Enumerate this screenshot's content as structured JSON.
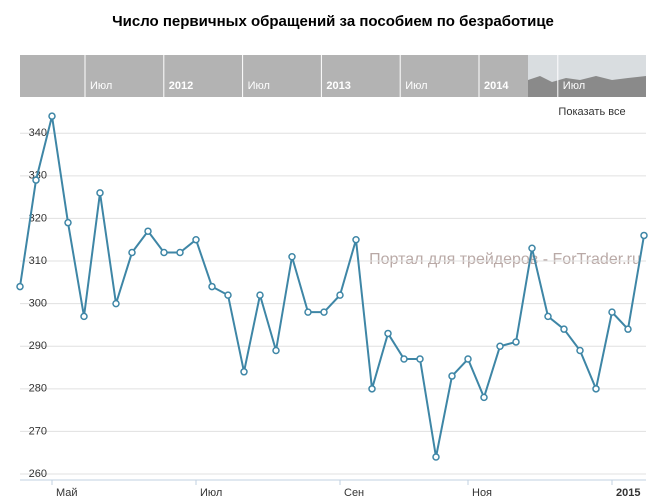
{
  "chart_data": {
    "type": "line",
    "title": "Число первичных обращений за пособием по безработице",
    "categories": [
      null,
      null,
      "Май",
      null,
      null,
      null,
      null,
      null,
      null,
      null,
      null,
      "Июл",
      null,
      null,
      null,
      null,
      null,
      null,
      null,
      null,
      "Сен",
      null,
      null,
      null,
      null,
      null,
      null,
      null,
      "Ноя",
      null,
      null,
      null,
      null,
      null,
      null,
      null,
      null,
      "2015",
      null,
      null
    ],
    "series": [
      {
        "color": "#3e86a6",
        "values": [
          304,
          329,
          344,
          319,
          297,
          326,
          300,
          312,
          317,
          312,
          312,
          315,
          304,
          302,
          284,
          302,
          289,
          311,
          298,
          298,
          302,
          315,
          280,
          293,
          287,
          287,
          264,
          283,
          287,
          278,
          290,
          291,
          313,
          297,
          294,
          289,
          280,
          298,
          294,
          316
        ]
      }
    ],
    "ylim": [
      258.6,
      348.5
    ],
    "yticks": [
      260,
      270,
      280,
      290,
      300,
      310,
      320,
      330,
      340
    ],
    "grid": true
  },
  "navigator": {
    "labels": [
      "Июл",
      "2012",
      "Июл",
      "2013",
      "Июл",
      "2014",
      "Июл"
    ]
  },
  "show_all": "Показать все",
  "watermark": "Портал для трейдеров - ForTrader.ru"
}
